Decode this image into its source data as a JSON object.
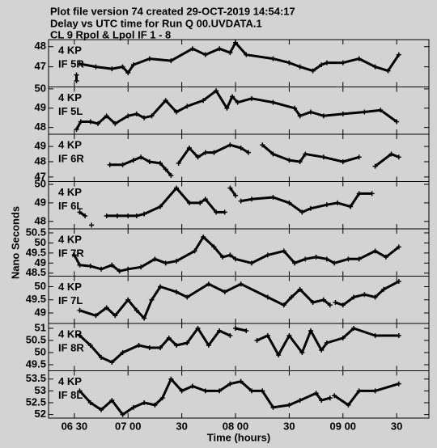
{
  "title": [
    "Plot file version 74  created 29-OCT-2019 14:54:17",
    "Delay vs UTC time for Run Q 00.UVDATA.1",
    "CL 9  Rpol & Lpol  IF 1 - 8"
  ],
  "ylabel": "Nano Seconds",
  "chart_data": [
    {
      "type": "line",
      "title": "4 KP",
      "subtitle": "IF 5R",
      "xlim": [
        6.26,
        9.8
      ],
      "ylim": [
        46.0,
        48.35
      ],
      "yticks": [
        47,
        48
      ],
      "x": [
        6.52,
        6.52,
        null,
        6.55,
        6.7,
        6.85,
        6.95,
        7.0,
        7.05,
        7.2,
        7.4,
        7.6,
        7.72,
        7.85,
        7.95,
        8.0,
        8.1,
        8.35,
        8.5,
        8.6,
        8.72,
        8.8,
        8.85,
        9.0,
        9.15,
        9.3,
        9.42,
        9.52
      ],
      "values": [
        46.6,
        46.3,
        null,
        47.15,
        47.0,
        46.9,
        47.0,
        46.7,
        47.1,
        47.4,
        47.3,
        47.9,
        47.6,
        47.9,
        47.7,
        48.2,
        47.6,
        47.4,
        47.2,
        47.0,
        46.8,
        47.1,
        47.2,
        47.2,
        47.4,
        47.0,
        46.8,
        47.6
      ]
    },
    {
      "type": "line",
      "title": "4 KP",
      "subtitle": "IF 5L",
      "xlim": [
        6.26,
        9.8
      ],
      "ylim": [
        47.65,
        50.1
      ],
      "yticks": [
        48,
        49,
        50
      ],
      "x": [
        6.52,
        6.56,
        6.65,
        6.72,
        6.8,
        6.88,
        7.0,
        7.08,
        7.15,
        7.22,
        7.35,
        7.45,
        7.55,
        7.7,
        7.82,
        7.92,
        7.97,
        8.02,
        8.15,
        8.35,
        8.55,
        8.6,
        8.7,
        8.82,
        9.0,
        9.2,
        9.35,
        9.5
      ],
      "values": [
        47.9,
        48.3,
        48.3,
        48.2,
        48.6,
        48.2,
        48.6,
        48.7,
        48.5,
        48.6,
        49.4,
        48.8,
        49.1,
        49.4,
        49.9,
        49.0,
        49.6,
        49.3,
        49.5,
        49.3,
        49.0,
        48.6,
        48.8,
        48.6,
        48.7,
        48.8,
        48.9,
        48.3
      ]
    },
    {
      "type": "line",
      "title": "4 KP",
      "subtitle": "IF 6R",
      "xlim": [
        6.26,
        9.8
      ],
      "ylim": [
        46.7,
        49.8
      ],
      "yticks": [
        47,
        48,
        49
      ],
      "x": [
        6.83,
        6.95,
        7.05,
        7.12,
        7.2,
        7.3,
        7.35,
        7.4,
        null,
        7.47,
        7.57,
        7.65,
        7.72,
        7.8,
        7.95,
        8.05,
        8.12,
        null,
        8.25,
        8.35,
        8.5,
        8.6,
        8.65,
        8.82,
        9.0,
        9.15,
        null,
        9.3,
        9.45,
        9.52
      ],
      "values": [
        47.8,
        47.8,
        48.1,
        48.3,
        48.0,
        47.9,
        47.5,
        47.1,
        null,
        47.9,
        48.9,
        48.3,
        48.6,
        48.6,
        49.1,
        48.9,
        48.6,
        null,
        49.1,
        48.5,
        48.1,
        48.0,
        48.5,
        48.3,
        48.0,
        48.3,
        null,
        47.7,
        48.5,
        48.3
      ]
    },
    {
      "type": "line",
      "title": "4 KP",
      "subtitle": "IF 6L",
      "xlim": [
        6.26,
        9.8
      ],
      "ylim": [
        47.6,
        50.15
      ],
      "yticks": [
        48,
        49,
        50
      ],
      "x": [
        6.55,
        6.6,
        null,
        6.66,
        null,
        6.8,
        6.9,
        7.0,
        7.08,
        7.15,
        7.3,
        7.45,
        7.57,
        7.67,
        7.72,
        7.82,
        7.9,
        null,
        7.95,
        8.0,
        null,
        8.05,
        8.15,
        8.35,
        8.5,
        8.62,
        8.7,
        8.85,
        8.95,
        9.07,
        9.15,
        9.27
      ],
      "values": [
        48.5,
        48.3,
        null,
        47.8,
        null,
        48.3,
        48.3,
        48.3,
        48.3,
        48.4,
        48.8,
        49.8,
        49.0,
        49.0,
        49.2,
        48.5,
        48.5,
        null,
        49.8,
        49.4,
        null,
        49.1,
        49.2,
        49.3,
        49.0,
        48.5,
        48.7,
        48.9,
        49.0,
        48.8,
        49.5,
        49.5
      ]
    },
    {
      "type": "line",
      "title": "4 KP",
      "subtitle": "IF 7R",
      "xlim": [
        6.26,
        9.8
      ],
      "ylim": [
        48.35,
        50.7
      ],
      "yticks": [
        48.5,
        49.0,
        49.5,
        50.0,
        50.5
      ],
      "x": [
        6.5,
        6.55,
        6.65,
        6.75,
        6.85,
        6.92,
        7.0,
        7.12,
        7.25,
        7.35,
        7.45,
        7.62,
        7.7,
        7.8,
        7.88,
        7.95,
        8.0,
        8.15,
        8.3,
        8.45,
        8.55,
        8.65,
        8.75,
        8.85,
        8.92,
        9.05,
        9.15,
        9.3,
        9.4,
        9.52
      ],
      "values": [
        49.4,
        48.9,
        48.85,
        48.7,
        48.9,
        48.6,
        48.7,
        48.8,
        49.2,
        49.0,
        49.1,
        49.6,
        50.3,
        49.8,
        49.3,
        49.4,
        49.2,
        49.0,
        49.4,
        49.6,
        49.0,
        49.2,
        49.3,
        49.2,
        49.0,
        49.2,
        49.2,
        49.6,
        49.3,
        49.8
      ]
    },
    {
      "type": "line",
      "title": "4 KP",
      "subtitle": "IF 7L",
      "xlim": [
        6.26,
        9.8
      ],
      "ylim": [
        48.6,
        50.4
      ],
      "yticks": [
        49.0,
        49.5,
        50.0
      ],
      "x": [
        6.55,
        6.7,
        6.8,
        6.88,
        7.0,
        7.08,
        7.15,
        7.22,
        7.3,
        7.45,
        7.55,
        7.75,
        7.9,
        8.05,
        8.3,
        8.45,
        8.52,
        8.6,
        8.72,
        8.82,
        8.88,
        null,
        8.93,
        9.0,
        9.1,
        9.2,
        9.3,
        9.38,
        9.52
      ],
      "values": [
        49.1,
        48.9,
        49.2,
        48.9,
        49.5,
        49.1,
        48.8,
        49.5,
        50.0,
        49.8,
        49.6,
        50.1,
        49.8,
        50.1,
        49.6,
        49.3,
        49.6,
        49.9,
        49.4,
        49.5,
        49.3,
        null,
        49.4,
        49.3,
        49.6,
        49.7,
        49.6,
        49.9,
        50.2
      ]
    },
    {
      "type": "line",
      "title": "4 KP",
      "subtitle": "IF 8R",
      "xlim": [
        6.26,
        9.8
      ],
      "ylim": [
        49.25,
        51.2
      ],
      "yticks": [
        49.5,
        50.0,
        50.5,
        51.0
      ],
      "x": [
        6.55,
        6.65,
        6.75,
        6.85,
        6.95,
        7.1,
        7.2,
        7.3,
        7.38,
        7.45,
        7.55,
        7.65,
        7.75,
        7.85,
        7.95,
        null,
        8.0,
        8.1,
        null,
        8.2,
        8.3,
        8.4,
        8.5,
        8.62,
        8.7,
        8.8,
        8.85,
        9.0,
        9.1,
        9.3,
        9.52
      ],
      "values": [
        50.7,
        50.3,
        49.8,
        49.6,
        50.0,
        50.3,
        50.2,
        50.2,
        50.6,
        50.3,
        50.4,
        51.0,
        50.3,
        50.9,
        50.7,
        null,
        51.0,
        50.9,
        null,
        50.5,
        50.7,
        49.9,
        50.7,
        50.0,
        50.9,
        50.1,
        50.4,
        50.6,
        51.0,
        50.7,
        50.7
      ]
    },
    {
      "type": "line",
      "title": "4 KP",
      "subtitle": "IF 8L",
      "xlim": [
        6.26,
        9.8
      ],
      "ylim": [
        51.85,
        53.85
      ],
      "yticks": [
        52.0,
        52.5,
        53.0,
        53.5
      ],
      "xlabel": "Time (hours)",
      "xticks": [
        {
          "value": 6.5,
          "label": "06 30"
        },
        {
          "value": 7.0,
          "label": "07 00"
        },
        {
          "value": 7.5,
          "label": "30"
        },
        {
          "value": 8.0,
          "label": "08 00"
        },
        {
          "value": 8.5,
          "label": "30"
        },
        {
          "value": 9.0,
          "label": "09 00"
        },
        {
          "value": 9.5,
          "label": "30"
        }
      ],
      "x": [
        6.55,
        6.65,
        6.75,
        6.85,
        6.95,
        7.05,
        7.15,
        7.25,
        7.32,
        7.4,
        7.5,
        7.6,
        7.72,
        7.85,
        7.95,
        8.05,
        8.15,
        8.25,
        8.35,
        8.5,
        8.6,
        8.75,
        8.8,
        8.88,
        null,
        8.92,
        9.05,
        9.15,
        9.3,
        9.52
      ],
      "values": [
        53.0,
        52.5,
        52.2,
        52.6,
        52.0,
        52.3,
        52.5,
        52.4,
        52.7,
        53.5,
        53.0,
        53.2,
        53.0,
        53.0,
        53.3,
        53.4,
        53.0,
        53.0,
        52.3,
        52.4,
        52.6,
        52.9,
        52.6,
        52.7,
        null,
        52.8,
        52.4,
        53.0,
        53.0,
        53.3
      ]
    }
  ]
}
